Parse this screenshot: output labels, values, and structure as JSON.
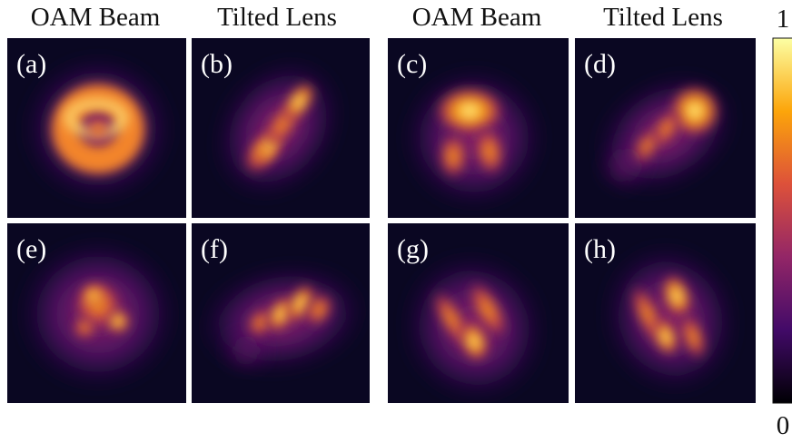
{
  "headers": [
    "OAM Beam",
    "Tilted Lens",
    "OAM Beam",
    "Tilted Lens"
  ],
  "panels": [
    {
      "label": "(a)"
    },
    {
      "label": "(b)"
    },
    {
      "label": "(c)"
    },
    {
      "label": "(d)"
    },
    {
      "label": "(e)"
    },
    {
      "label": "(f)"
    },
    {
      "label": "(g)"
    },
    {
      "label": "(h)"
    }
  ],
  "colorbar": {
    "max": 1,
    "min": 0
  }
}
